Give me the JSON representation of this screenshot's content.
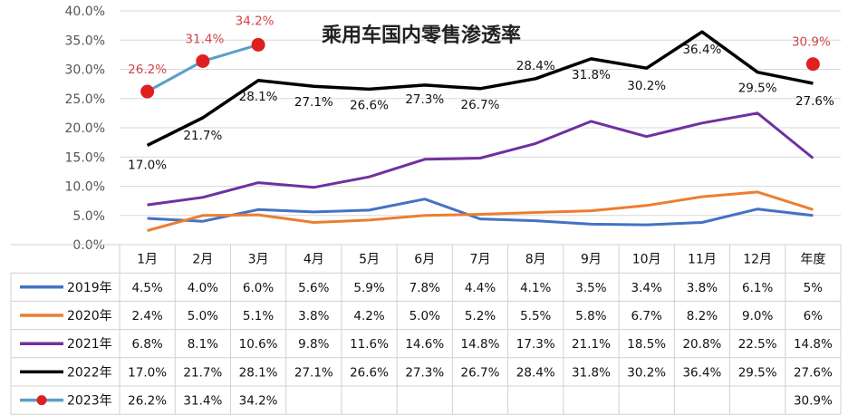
{
  "chart_data": {
    "type": "line",
    "title": "乘用车国内零售渗透率",
    "categories": [
      "1月",
      "2月",
      "3月",
      "4月",
      "5月",
      "6月",
      "7月",
      "8月",
      "9月",
      "10月",
      "11月",
      "12月",
      "年度"
    ],
    "ylim": [
      0,
      40
    ],
    "yticks": [
      "0.0%",
      "5.0%",
      "10.0%",
      "15.0%",
      "20.0%",
      "25.0%",
      "30.0%",
      "35.0%",
      "40.0%"
    ],
    "grid": true,
    "series": [
      {
        "name": "2019年",
        "color": "#4472c4",
        "values": [
          4.5,
          4.0,
          6.0,
          5.6,
          5.9,
          7.8,
          4.4,
          4.1,
          3.5,
          3.4,
          3.8,
          6.1,
          5
        ],
        "labels": [
          "4.5%",
          "4.0%",
          "6.0%",
          "5.6%",
          "5.9%",
          "7.8%",
          "4.4%",
          "4.1%",
          "3.5%",
          "3.4%",
          "3.8%",
          "6.1%",
          "5%"
        ]
      },
      {
        "name": "2020年",
        "color": "#ed7d31",
        "values": [
          2.4,
          5.0,
          5.1,
          3.8,
          4.2,
          5.0,
          5.2,
          5.5,
          5.8,
          6.7,
          8.2,
          9.0,
          6
        ],
        "labels": [
          "2.4%",
          "5.0%",
          "5.1%",
          "3.8%",
          "4.2%",
          "5.0%",
          "5.2%",
          "5.5%",
          "5.8%",
          "6.7%",
          "8.2%",
          "9.0%",
          "6%"
        ]
      },
      {
        "name": "2021年",
        "color": "#7030a0",
        "values": [
          6.8,
          8.1,
          10.6,
          9.8,
          11.6,
          14.6,
          14.8,
          17.3,
          21.1,
          18.5,
          20.8,
          22.5,
          14.8
        ],
        "labels": [
          "6.8%",
          "8.1%",
          "10.6%",
          "9.8%",
          "11.6%",
          "14.6%",
          "14.8%",
          "17.3%",
          "21.1%",
          "18.5%",
          "20.8%",
          "22.5%",
          "14.8%"
        ]
      },
      {
        "name": "2022年",
        "color": "#000000",
        "values": [
          17.0,
          21.7,
          28.1,
          27.1,
          26.6,
          27.3,
          26.7,
          28.4,
          31.8,
          30.2,
          36.4,
          29.5,
          27.6
        ],
        "labels": [
          "17.0%",
          "21.7%",
          "28.1%",
          "27.1%",
          "26.6%",
          "27.3%",
          "26.7%",
          "28.4%",
          "31.8%",
          "30.2%",
          "36.4%",
          "29.5%",
          "27.6%"
        ]
      },
      {
        "name": "2023年",
        "color": "#5aa0c8",
        "marker_color": "#e02020",
        "values": [
          26.2,
          31.4,
          34.2,
          null,
          null,
          null,
          null,
          null,
          null,
          null,
          null,
          null,
          30.9
        ],
        "labels": [
          "26.2%",
          "31.4%",
          "34.2%",
          "",
          "",
          "",
          "",
          "",
          "",
          "",
          "",
          "",
          "30.9%"
        ]
      }
    ]
  }
}
